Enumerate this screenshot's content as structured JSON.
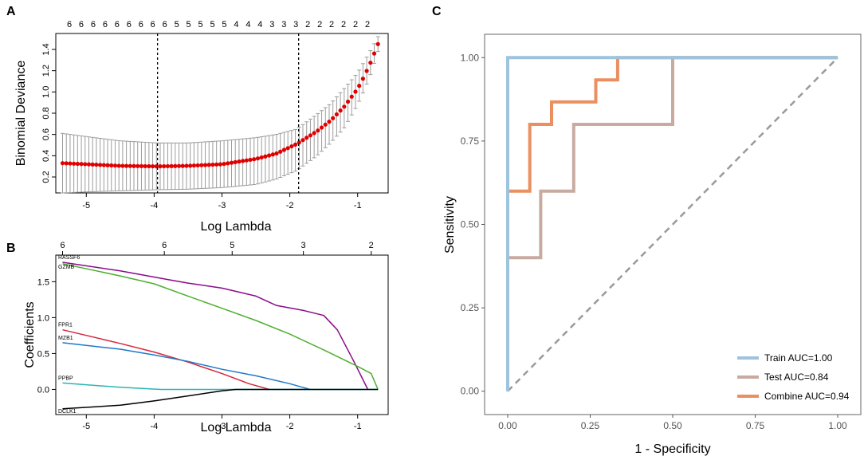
{
  "chart_data": [
    {
      "panel": "A",
      "type": "scatter",
      "subtype": "error-bar",
      "xlabel": "Log Lambda",
      "ylabel": "Binomial Deviance",
      "xlim": [
        -5.45,
        -0.55
      ],
      "ylim": [
        0.05,
        1.55
      ],
      "x_ticks": [
        -5,
        -4,
        -3,
        -2,
        -1
      ],
      "y_ticks": [
        0.2,
        0.4,
        0.6,
        0.8,
        1.0,
        1.2,
        1.4
      ],
      "y_tick_labels": [
        "0.2",
        "0.4",
        "0.6",
        "0.8",
        "1.0",
        "1.2",
        "1.4"
      ],
      "top_counts": [
        "6",
        "6",
        "6",
        "6",
        "6",
        "6",
        "6",
        "6",
        "6",
        "5",
        "5",
        "5",
        "5",
        "5",
        "4",
        "4",
        "4",
        "3",
        "3",
        "3",
        "2",
        "2",
        "2",
        "2",
        "2",
        "2"
      ],
      "vlines": [
        -3.95,
        -1.87
      ],
      "curve_x": [
        -5.35,
        -5.0,
        -4.5,
        -3.95,
        -3.5,
        -3.0,
        -2.5,
        -2.2,
        -1.9,
        -1.6,
        -1.4,
        -1.2,
        -1.0,
        -0.9,
        -0.8,
        -0.7
      ],
      "curve_y": [
        0.33,
        0.32,
        0.305,
        0.3,
        0.305,
        0.32,
        0.37,
        0.42,
        0.51,
        0.63,
        0.73,
        0.86,
        1.03,
        1.15,
        1.29,
        1.45
      ],
      "curve_lo": [
        0.05,
        0.06,
        0.07,
        0.08,
        0.085,
        0.1,
        0.13,
        0.18,
        0.26,
        0.4,
        0.52,
        0.66,
        0.88,
        1.02,
        1.18,
        1.38
      ],
      "curve_hi": [
        0.61,
        0.58,
        0.54,
        0.52,
        0.52,
        0.54,
        0.57,
        0.6,
        0.65,
        0.79,
        0.89,
        1.03,
        1.18,
        1.29,
        1.4,
        1.52
      ]
    },
    {
      "panel": "B",
      "type": "line",
      "xlabel": "Log Lambda",
      "ylabel": "Coefficients",
      "xlim": [
        -5.45,
        -0.55
      ],
      "ylim": [
        -0.35,
        1.87
      ],
      "x_ticks": [
        -5,
        -4,
        -3,
        -2,
        -1
      ],
      "y_ticks": [
        0.0,
        0.5,
        1.0,
        1.5
      ],
      "y_tick_labels": [
        "0.0",
        "0.5",
        "1.0",
        "1.5"
      ],
      "top_axis_ticks": [
        -5.35,
        -3.85,
        -2.85,
        -1.8,
        -0.8
      ],
      "top_axis_labels": [
        "6",
        "6",
        "5",
        "3",
        "2"
      ],
      "series": [
        {
          "name": "RASSF6",
          "color": "#8b0a8b",
          "x": [
            -5.35,
            -4.5,
            -3.8,
            -3.5,
            -3.0,
            -2.5,
            -2.2,
            -1.8,
            -1.5,
            -1.3,
            -1.05,
            -0.85
          ],
          "values": [
            1.77,
            1.65,
            1.53,
            1.48,
            1.41,
            1.3,
            1.17,
            1.1,
            1.03,
            0.83,
            0.38,
            0.0
          ]
        },
        {
          "name": "GZMB",
          "color": "#4caf2e",
          "x": [
            -5.35,
            -4.5,
            -4.0,
            -3.5,
            -3.0,
            -2.5,
            -2.0,
            -1.5,
            -1.0,
            -0.8,
            -0.7
          ],
          "values": [
            1.75,
            1.58,
            1.47,
            1.3,
            1.13,
            0.96,
            0.77,
            0.55,
            0.32,
            0.22,
            0.0
          ]
        },
        {
          "name": "FPR1",
          "color": "#d7263d",
          "x": [
            -5.35,
            -4.5,
            -4.0,
            -3.5,
            -3.0,
            -2.6,
            -2.3
          ],
          "values": [
            0.83,
            0.64,
            0.52,
            0.38,
            0.22,
            0.08,
            0.0
          ]
        },
        {
          "name": "MZB1",
          "color": "#1f78c8",
          "x": [
            -5.35,
            -4.5,
            -4.0,
            -3.5,
            -3.0,
            -2.5,
            -2.0,
            -1.7
          ],
          "values": [
            0.65,
            0.56,
            0.48,
            0.39,
            0.28,
            0.19,
            0.08,
            0.0
          ]
        },
        {
          "name": "PPBP",
          "color": "#2bb5b5",
          "x": [
            -5.35,
            -4.5,
            -3.9,
            -0.7
          ],
          "values": [
            0.09,
            0.03,
            0.0,
            0.0
          ]
        },
        {
          "name": "DCLK1",
          "color": "#000000",
          "x": [
            -5.35,
            -4.5,
            -4.0,
            -3.5,
            -3.0,
            -2.8,
            -0.7
          ],
          "values": [
            -0.27,
            -0.22,
            -0.16,
            -0.09,
            -0.02,
            0.0,
            0.0
          ]
        }
      ]
    },
    {
      "panel": "C",
      "type": "line",
      "subtype": "roc",
      "xlabel": "1 - Specificity",
      "ylabel": "Sensitivity",
      "xlim": [
        -0.07,
        1.07
      ],
      "ylim": [
        -0.07,
        1.07
      ],
      "x_ticks": [
        0.0,
        0.25,
        0.5,
        0.75,
        1.0
      ],
      "y_ticks": [
        0.0,
        0.25,
        0.5,
        0.75,
        1.0
      ],
      "x_tick_labels": [
        "0.00",
        "0.25",
        "0.50",
        "0.75",
        "1.00"
      ],
      "y_tick_labels": [
        "0.00",
        "0.25",
        "0.50",
        "0.75",
        "1.00"
      ],
      "diagonal": true,
      "series": [
        {
          "name": "Train AUC=1.00",
          "color": "#9dc3dd",
          "x": [
            0,
            0,
            0.333,
            1.0
          ],
          "values": [
            0,
            1.0,
            1.0,
            1.0
          ]
        },
        {
          "name": "Test AUC=0.84",
          "color": "#c9aaa1",
          "x": [
            0,
            0,
            0.1,
            0.1,
            0.2,
            0.2,
            0.5,
            0.5,
            1.0
          ],
          "values": [
            0,
            0.4,
            0.4,
            0.6,
            0.6,
            0.8,
            0.8,
            1.0,
            1.0
          ]
        },
        {
          "name": "Combine AUC=0.94",
          "color": "#eb8f60",
          "x": [
            0,
            0,
            0.067,
            0.067,
            0.133,
            0.133,
            0.267,
            0.267,
            0.333,
            0.333,
            1.0
          ],
          "values": [
            0,
            0.6,
            0.6,
            0.8,
            0.8,
            0.867,
            0.867,
            0.933,
            0.933,
            1.0,
            1.0
          ]
        }
      ]
    }
  ],
  "labels": {
    "a": "A",
    "b": "B",
    "c": "C"
  }
}
